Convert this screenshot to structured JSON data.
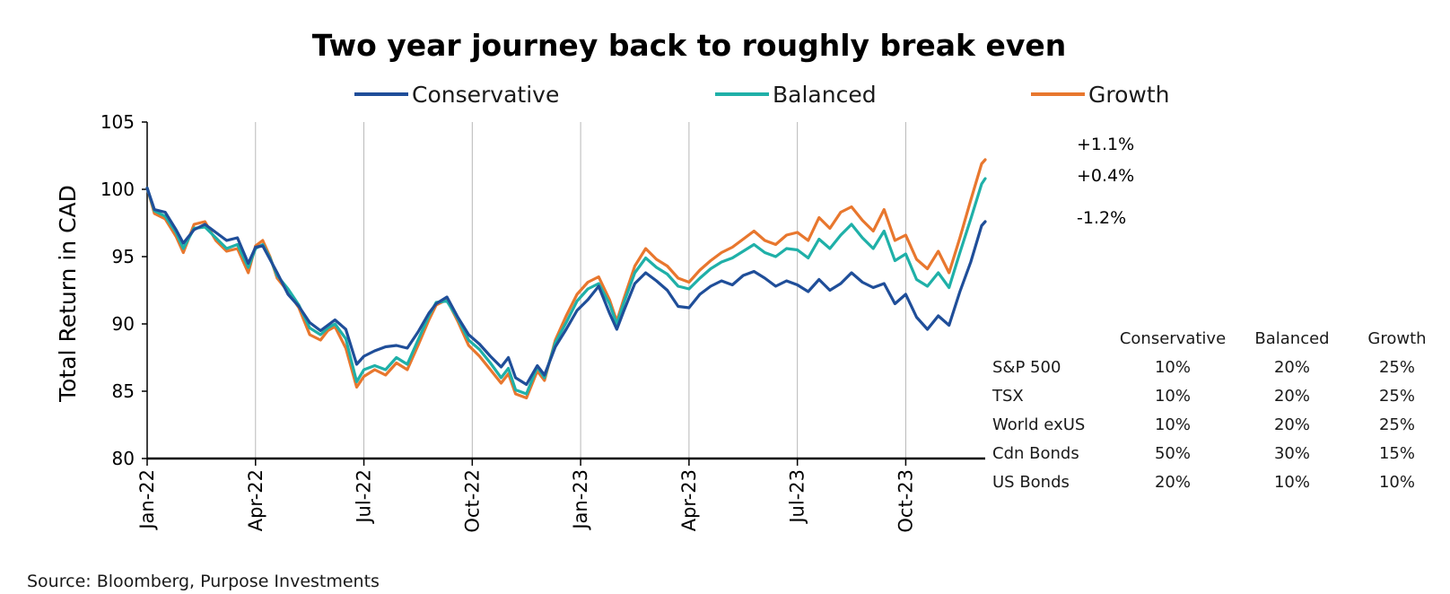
{
  "chart_data": {
    "type": "line",
    "title": "Two year journey back to roughly break even",
    "ylabel": "Total Return in CAD",
    "xlabel": "",
    "ylim": [
      80,
      105
    ],
    "yticks": [
      "80",
      "85",
      "90",
      "95",
      "100",
      "105"
    ],
    "x_tick_labels": [
      "Jan-22",
      "Apr-22",
      "Jul-22",
      "Oct-22",
      "Jan-23",
      "Apr-23",
      "Jul-23",
      "Oct-23"
    ],
    "x_domain_months": [
      0,
      23.2
    ],
    "grid": "vertical",
    "legend_position": "top",
    "series": [
      {
        "name": "Conservative",
        "color": "#1f4e99",
        "end_label": "-1.2%",
        "points": [
          [
            0.0,
            100.1
          ],
          [
            0.2,
            98.5
          ],
          [
            0.5,
            98.3
          ],
          [
            0.8,
            97.0
          ],
          [
            1.0,
            96.0
          ],
          [
            1.3,
            97.0
          ],
          [
            1.6,
            97.4
          ],
          [
            1.9,
            96.8
          ],
          [
            2.2,
            96.2
          ],
          [
            2.5,
            96.4
          ],
          [
            2.8,
            94.5
          ],
          [
            3.0,
            95.7
          ],
          [
            3.2,
            95.8
          ],
          [
            3.4,
            94.8
          ],
          [
            3.6,
            93.8
          ],
          [
            3.9,
            92.2
          ],
          [
            4.2,
            91.3
          ],
          [
            4.5,
            90.1
          ],
          [
            4.8,
            89.5
          ],
          [
            5.0,
            89.9
          ],
          [
            5.2,
            90.3
          ],
          [
            5.5,
            89.6
          ],
          [
            5.8,
            87.0
          ],
          [
            6.0,
            87.6
          ],
          [
            6.3,
            88.0
          ],
          [
            6.6,
            88.3
          ],
          [
            6.9,
            88.4
          ],
          [
            7.2,
            88.2
          ],
          [
            7.5,
            89.4
          ],
          [
            7.8,
            90.8
          ],
          [
            8.0,
            91.5
          ],
          [
            8.3,
            92.0
          ],
          [
            8.6,
            90.5
          ],
          [
            8.9,
            89.2
          ],
          [
            9.2,
            88.5
          ],
          [
            9.5,
            87.6
          ],
          [
            9.8,
            86.8
          ],
          [
            10.0,
            87.5
          ],
          [
            10.2,
            86.0
          ],
          [
            10.5,
            85.5
          ],
          [
            10.8,
            86.9
          ],
          [
            11.0,
            86.2
          ],
          [
            11.3,
            88.3
          ],
          [
            11.6,
            89.6
          ],
          [
            11.9,
            91.0
          ],
          [
            12.2,
            91.8
          ],
          [
            12.5,
            92.8
          ],
          [
            12.8,
            90.8
          ],
          [
            13.0,
            89.6
          ],
          [
            13.2,
            91.0
          ],
          [
            13.5,
            93.0
          ],
          [
            13.8,
            93.8
          ],
          [
            14.1,
            93.2
          ],
          [
            14.4,
            92.5
          ],
          [
            14.7,
            91.3
          ],
          [
            15.0,
            91.2
          ],
          [
            15.3,
            92.2
          ],
          [
            15.6,
            92.8
          ],
          [
            15.9,
            93.2
          ],
          [
            16.2,
            92.9
          ],
          [
            16.5,
            93.6
          ],
          [
            16.8,
            93.9
          ],
          [
            17.1,
            93.4
          ],
          [
            17.4,
            92.8
          ],
          [
            17.7,
            93.2
          ],
          [
            18.0,
            92.9
          ],
          [
            18.3,
            92.4
          ],
          [
            18.6,
            93.3
          ],
          [
            18.9,
            92.5
          ],
          [
            19.2,
            93.0
          ],
          [
            19.5,
            93.8
          ],
          [
            19.8,
            93.1
          ],
          [
            20.1,
            92.7
          ],
          [
            20.4,
            93.0
          ],
          [
            20.7,
            91.5
          ],
          [
            21.0,
            92.2
          ],
          [
            21.3,
            90.5
          ],
          [
            21.6,
            89.6
          ],
          [
            21.9,
            90.6
          ],
          [
            22.2,
            89.9
          ],
          [
            22.5,
            92.4
          ],
          [
            22.8,
            94.6
          ],
          [
            23.1,
            97.3
          ],
          [
            23.2,
            97.6
          ]
        ]
      },
      {
        "name": "Balanced",
        "color": "#1fb0a8",
        "end_label": "+0.4%",
        "points": [
          [
            0.0,
            100.1
          ],
          [
            0.2,
            98.4
          ],
          [
            0.5,
            98.0
          ],
          [
            0.8,
            96.8
          ],
          [
            1.0,
            95.6
          ],
          [
            1.3,
            97.1
          ],
          [
            1.6,
            97.2
          ],
          [
            1.9,
            96.4
          ],
          [
            2.2,
            95.6
          ],
          [
            2.5,
            95.9
          ],
          [
            2.8,
            94.2
          ],
          [
            3.0,
            95.6
          ],
          [
            3.2,
            95.9
          ],
          [
            3.4,
            94.9
          ],
          [
            3.6,
            93.6
          ],
          [
            3.9,
            92.6
          ],
          [
            4.2,
            91.4
          ],
          [
            4.5,
            89.7
          ],
          [
            4.8,
            89.2
          ],
          [
            5.0,
            89.7
          ],
          [
            5.2,
            90.0
          ],
          [
            5.5,
            88.9
          ],
          [
            5.8,
            85.7
          ],
          [
            6.0,
            86.6
          ],
          [
            6.3,
            86.9
          ],
          [
            6.6,
            86.6
          ],
          [
            6.9,
            87.5
          ],
          [
            7.2,
            87.0
          ],
          [
            7.5,
            88.8
          ],
          [
            7.8,
            90.6
          ],
          [
            8.0,
            91.6
          ],
          [
            8.3,
            91.7
          ],
          [
            8.6,
            90.4
          ],
          [
            8.9,
            88.8
          ],
          [
            9.2,
            88.1
          ],
          [
            9.5,
            87.1
          ],
          [
            9.8,
            86.0
          ],
          [
            10.0,
            86.7
          ],
          [
            10.2,
            85.1
          ],
          [
            10.5,
            84.8
          ],
          [
            10.8,
            86.8
          ],
          [
            11.0,
            86.0
          ],
          [
            11.3,
            88.6
          ],
          [
            11.6,
            90.1
          ],
          [
            11.9,
            91.7
          ],
          [
            12.2,
            92.6
          ],
          [
            12.5,
            93.0
          ],
          [
            12.8,
            91.5
          ],
          [
            13.0,
            90.0
          ],
          [
            13.2,
            91.6
          ],
          [
            13.5,
            93.8
          ],
          [
            13.8,
            94.9
          ],
          [
            14.1,
            94.2
          ],
          [
            14.4,
            93.7
          ],
          [
            14.7,
            92.8
          ],
          [
            15.0,
            92.6
          ],
          [
            15.3,
            93.4
          ],
          [
            15.6,
            94.1
          ],
          [
            15.9,
            94.6
          ],
          [
            16.2,
            94.9
          ],
          [
            16.5,
            95.4
          ],
          [
            16.8,
            95.9
          ],
          [
            17.1,
            95.3
          ],
          [
            17.4,
            95.0
          ],
          [
            17.7,
            95.6
          ],
          [
            18.0,
            95.5
          ],
          [
            18.3,
            94.9
          ],
          [
            18.6,
            96.3
          ],
          [
            18.9,
            95.6
          ],
          [
            19.2,
            96.6
          ],
          [
            19.5,
            97.4
          ],
          [
            19.8,
            96.4
          ],
          [
            20.1,
            95.6
          ],
          [
            20.4,
            96.9
          ],
          [
            20.7,
            94.7
          ],
          [
            21.0,
            95.2
          ],
          [
            21.3,
            93.3
          ],
          [
            21.6,
            92.8
          ],
          [
            21.9,
            93.8
          ],
          [
            22.2,
            92.7
          ],
          [
            22.5,
            95.3
          ],
          [
            22.8,
            97.8
          ],
          [
            23.1,
            100.4
          ],
          [
            23.2,
            100.8
          ]
        ]
      },
      {
        "name": "Growth",
        "color": "#e8772e",
        "end_label": "+1.1%",
        "points": [
          [
            0.0,
            100.1
          ],
          [
            0.2,
            98.2
          ],
          [
            0.5,
            97.8
          ],
          [
            0.8,
            96.5
          ],
          [
            1.0,
            95.3
          ],
          [
            1.3,
            97.4
          ],
          [
            1.6,
            97.6
          ],
          [
            1.9,
            96.2
          ],
          [
            2.2,
            95.4
          ],
          [
            2.5,
            95.6
          ],
          [
            2.8,
            93.8
          ],
          [
            3.0,
            95.8
          ],
          [
            3.2,
            96.2
          ],
          [
            3.4,
            95.0
          ],
          [
            3.6,
            93.4
          ],
          [
            3.9,
            92.4
          ],
          [
            4.2,
            91.2
          ],
          [
            4.5,
            89.2
          ],
          [
            4.8,
            88.8
          ],
          [
            5.0,
            89.5
          ],
          [
            5.2,
            89.8
          ],
          [
            5.5,
            88.2
          ],
          [
            5.8,
            85.3
          ],
          [
            6.0,
            86.1
          ],
          [
            6.3,
            86.6
          ],
          [
            6.6,
            86.2
          ],
          [
            6.9,
            87.1
          ],
          [
            7.2,
            86.6
          ],
          [
            7.5,
            88.4
          ],
          [
            7.8,
            90.3
          ],
          [
            8.0,
            91.4
          ],
          [
            8.3,
            91.8
          ],
          [
            8.6,
            90.2
          ],
          [
            8.9,
            88.4
          ],
          [
            9.2,
            87.6
          ],
          [
            9.5,
            86.6
          ],
          [
            9.8,
            85.6
          ],
          [
            10.0,
            86.3
          ],
          [
            10.2,
            84.8
          ],
          [
            10.5,
            84.5
          ],
          [
            10.8,
            86.5
          ],
          [
            11.0,
            85.8
          ],
          [
            11.3,
            88.8
          ],
          [
            11.6,
            90.6
          ],
          [
            11.9,
            92.2
          ],
          [
            12.2,
            93.1
          ],
          [
            12.5,
            93.5
          ],
          [
            12.8,
            91.8
          ],
          [
            13.0,
            90.2
          ],
          [
            13.2,
            91.9
          ],
          [
            13.5,
            94.3
          ],
          [
            13.8,
            95.6
          ],
          [
            14.1,
            94.8
          ],
          [
            14.4,
            94.3
          ],
          [
            14.7,
            93.4
          ],
          [
            15.0,
            93.1
          ],
          [
            15.3,
            94.0
          ],
          [
            15.6,
            94.7
          ],
          [
            15.9,
            95.3
          ],
          [
            16.2,
            95.7
          ],
          [
            16.5,
            96.3
          ],
          [
            16.8,
            96.9
          ],
          [
            17.1,
            96.2
          ],
          [
            17.4,
            95.9
          ],
          [
            17.7,
            96.6
          ],
          [
            18.0,
            96.8
          ],
          [
            18.3,
            96.2
          ],
          [
            18.6,
            97.9
          ],
          [
            18.9,
            97.1
          ],
          [
            19.2,
            98.3
          ],
          [
            19.5,
            98.7
          ],
          [
            19.8,
            97.7
          ],
          [
            20.1,
            96.9
          ],
          [
            20.4,
            98.5
          ],
          [
            20.7,
            96.2
          ],
          [
            21.0,
            96.6
          ],
          [
            21.3,
            94.8
          ],
          [
            21.6,
            94.1
          ],
          [
            21.9,
            95.4
          ],
          [
            22.2,
            93.8
          ],
          [
            22.5,
            96.4
          ],
          [
            22.8,
            99.2
          ],
          [
            23.1,
            101.9
          ],
          [
            23.2,
            102.2
          ]
        ]
      }
    ],
    "allocation_table": {
      "columns": [
        "Conservative",
        "Balanced",
        "Growth"
      ],
      "rows": [
        {
          "label": "S&P 500",
          "values": [
            "10%",
            "20%",
            "25%"
          ]
        },
        {
          "label": "TSX",
          "values": [
            "10%",
            "20%",
            "25%"
          ]
        },
        {
          "label": "World exUS",
          "values": [
            "10%",
            "20%",
            "25%"
          ]
        },
        {
          "label": "Cdn Bonds",
          "values": [
            "50%",
            "30%",
            "15%"
          ]
        },
        {
          "label": "US Bonds",
          "values": [
            "20%",
            "10%",
            "10%"
          ]
        }
      ]
    },
    "source": "Source: Bloomberg, Purpose Investments"
  }
}
